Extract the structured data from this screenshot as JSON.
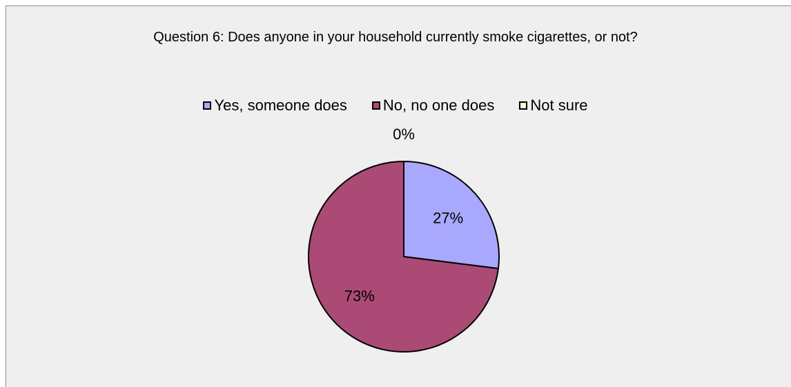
{
  "chart_data": {
    "type": "pie",
    "title": "Question 6: Does anyone in your household currently smoke cigarettes, or not?",
    "categories": [
      "Yes, someone does",
      "No, no one does",
      "Not sure"
    ],
    "values": [
      27,
      73,
      0
    ],
    "data_labels": [
      "27%",
      "73%",
      "0%"
    ],
    "colors": [
      "#a9a8ff",
      "#ab4a75",
      "#ffffcc"
    ],
    "legend_position": "top"
  }
}
